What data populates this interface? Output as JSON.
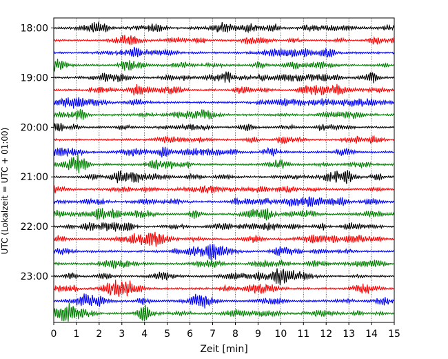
{
  "chart_data": {
    "type": "line",
    "title": "",
    "xlabel": "Zeit  [min]",
    "ylabel": "UTC (Lokalzeit = UTC + 01:00)",
    "xlim": [
      0,
      15
    ],
    "x_ticks": [
      "0",
      "1",
      "2",
      "3",
      "4",
      "5",
      "6",
      "7",
      "8",
      "9",
      "10",
      "11",
      "12",
      "13",
      "14",
      "15"
    ],
    "grid": "vertical dotted lines at each minute",
    "y_ticks": [
      {
        "label": "18:00",
        "trace_index": 0
      },
      {
        "label": "19:00",
        "trace_index": 4
      },
      {
        "label": "20:00",
        "trace_index": 8
      },
      {
        "label": "21:00",
        "trace_index": 12
      },
      {
        "label": "22:00",
        "trace_index": 16
      },
      {
        "label": "23:00",
        "trace_index": 20
      }
    ],
    "trace_interval_minutes": 15,
    "trace_colors": [
      "#000000",
      "#ff0000",
      "#0000ff",
      "#008000"
    ],
    "trace_count": 24,
    "traces_start": "18:00",
    "traces_end": "23:45"
  }
}
